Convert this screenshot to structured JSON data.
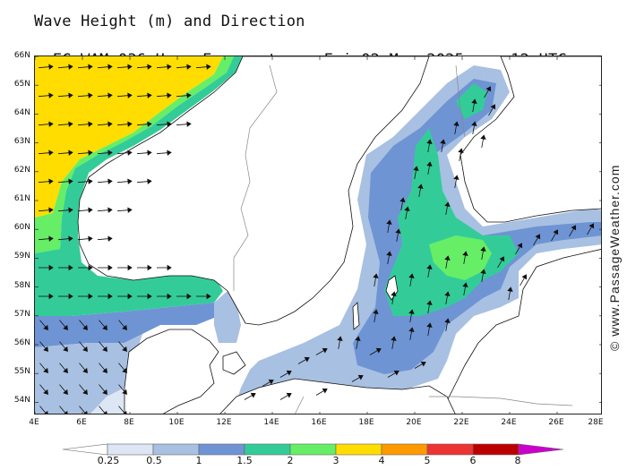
{
  "header": {
    "title": "Wave Height (m) and Direction",
    "model": "EC-WAM 036 Hour Forecast",
    "date": "Fri 02 May 2025",
    "time": "12 UTC"
  },
  "credit": "© www.PassageWeather.com",
  "map": {
    "region": "Baltic Sea & Skagerrak",
    "lat_labels": [
      "66N",
      "65N",
      "64N",
      "63N",
      "62N",
      "61N",
      "60N",
      "59N",
      "58N",
      "57N",
      "56N",
      "55N",
      "54N"
    ],
    "lon_labels": [
      "4E",
      "6E",
      "8E",
      "10E",
      "12E",
      "14E",
      "16E",
      "18E",
      "20E",
      "22E",
      "24E",
      "26E",
      "28E"
    ],
    "lon_range": [
      4,
      28
    ],
    "lat_range": [
      53.7,
      66
    ],
    "colors": {
      "land": "#ffffff",
      "coast": "#111111",
      "arrow": "#111111"
    }
  },
  "legend": {
    "ticks": [
      "0.25",
      "0.5",
      "1",
      "1.5",
      "2",
      "3",
      "4",
      "5",
      "6",
      "8"
    ],
    "colors": [
      "#ffffff",
      "#dde6f4",
      "#a8c0e2",
      "#6e94d4",
      "#33cc99",
      "#66ee66",
      "#ffdd00",
      "#ff9900",
      "#ee3333",
      "#bb0000",
      "#cc00cc"
    ]
  }
}
